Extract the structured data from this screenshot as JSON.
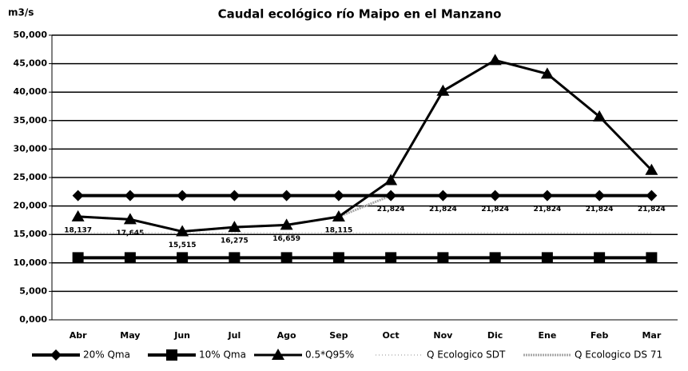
{
  "chart_data": {
    "type": "line",
    "title": "Caudal ecológico río Maipo en el Manzano",
    "ylabel": "m3/s",
    "categories": [
      "Abr",
      "May",
      "Jun",
      "Jul",
      "Ago",
      "Sep",
      "Oct",
      "Nov",
      "Dic",
      "Ene",
      "Feb",
      "Mar"
    ],
    "series": [
      {
        "name": "20% Qma",
        "color": "#000000",
        "marker": "diamond",
        "values": [
          21.824,
          21.824,
          21.824,
          21.824,
          21.824,
          21.824,
          21.824,
          21.824,
          21.824,
          21.824,
          21.824,
          21.824
        ]
      },
      {
        "name": "10% Qma",
        "color": "#000000",
        "marker": "square",
        "values": [
          10.9,
          10.9,
          10.9,
          10.9,
          10.9,
          10.9,
          10.9,
          10.9,
          10.9,
          10.9,
          10.9,
          10.9
        ]
      },
      {
        "name": "0.5*Q95%",
        "color": "#000000",
        "marker": "triangle",
        "values": [
          18.137,
          17.645,
          15.515,
          16.275,
          16.659,
          18.115,
          24.5,
          40.2,
          45.6,
          43.2,
          35.7,
          26.3
        ]
      },
      {
        "name": "Q Ecologico SDT",
        "color": "#c8c8c8",
        "marker": "none",
        "values": [
          15.3,
          15.3,
          15.3,
          15.3,
          15.3,
          15.3,
          15.3,
          15.3,
          15.3,
          15.3,
          15.3,
          15.3
        ]
      },
      {
        "name": "Q Ecologico DS 71",
        "color": "#a8a8a8",
        "marker": "none",
        "values": [
          18.137,
          17.645,
          15.515,
          16.275,
          16.659,
          18.115,
          21.824,
          21.824,
          21.824,
          21.824,
          21.824,
          21.824
        ],
        "value_labels": [
          "18,137",
          "17,645",
          "15,515",
          "16,275",
          "16,659",
          "18,115",
          "21,824",
          "21,824",
          "21,824",
          "21,824",
          "21,824",
          "21,824"
        ]
      }
    ],
    "ylim": [
      0,
      50
    ],
    "yticks": [
      {
        "value": 0,
        "label": "0,000"
      },
      {
        "value": 5,
        "label": "5,000"
      },
      {
        "value": 10,
        "label": "10,000"
      },
      {
        "value": 15,
        "label": "15,000"
      },
      {
        "value": 20,
        "label": "20,000"
      },
      {
        "value": 25,
        "label": "25,000"
      },
      {
        "value": 30,
        "label": "30,000"
      },
      {
        "value": 35,
        "label": "35,000"
      },
      {
        "value": 40,
        "label": "40,000"
      },
      {
        "value": 45,
        "label": "45,000"
      },
      {
        "value": 50,
        "label": "50,000"
      }
    ],
    "grid": true,
    "legend": "bottom"
  }
}
